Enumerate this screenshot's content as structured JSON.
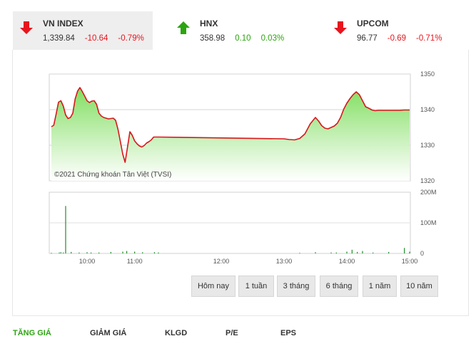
{
  "indices": [
    {
      "name": "VN INDEX",
      "value": "1,339.84",
      "change": "-10.64",
      "percent": "-0.79%",
      "direction": "down",
      "active": true
    },
    {
      "name": "HNX",
      "value": "358.98",
      "change": "0.10",
      "percent": "0.03%",
      "direction": "up",
      "active": false
    },
    {
      "name": "UPCOM",
      "value": "96.77",
      "change": "-0.69",
      "percent": "-0.71%",
      "direction": "down",
      "active": false
    }
  ],
  "colors": {
    "up": "#2ba50f",
    "down": "#e8141d",
    "line": "#d9161c",
    "fill_top": "#7fde5e",
    "volume": "#1f8c2a"
  },
  "chart_data": {
    "type": "line",
    "copyright": "©2021 Chứng khoán Tân Việt (TVSI)",
    "price_ticks": [
      "1350",
      "1340",
      "1330",
      "1320"
    ],
    "volume_ticks": [
      "200M",
      "100M",
      "0"
    ],
    "x_ticks": [
      "10:00",
      "11:00",
      "12:00",
      "13:00",
      "14:00",
      "15:00"
    ],
    "ylim": [
      1320,
      1350
    ],
    "volume_ylim": [
      0,
      200
    ],
    "grid": true,
    "series": [
      {
        "x": [
          "9:15",
          "9:18",
          "9:21",
          "9:24",
          "9:27",
          "9:30",
          "9:33",
          "9:36",
          "9:39",
          "9:42",
          "9:45",
          "9:48",
          "9:51",
          "9:54",
          "9:57",
          "10:00",
          "10:03",
          "10:06",
          "10:09",
          "10:12",
          "10:15",
          "10:18",
          "10:21",
          "10:24",
          "10:27",
          "10:30",
          "10:33",
          "10:36",
          "10:39",
          "10:42",
          "10:45",
          "10:48",
          "10:51",
          "10:54",
          "10:57",
          "11:00",
          "11:03",
          "11:06",
          "11:09",
          "11:12",
          "11:15",
          "11:18",
          "11:21",
          "11:24",
          "11:27",
          "11:30",
          "13:00",
          "13:05",
          "13:10",
          "13:15",
          "13:20",
          "13:25",
          "13:30",
          "13:33",
          "13:36",
          "13:39",
          "13:42",
          "13:45",
          "13:48",
          "13:51",
          "13:54",
          "13:57",
          "14:00",
          "14:03",
          "14:06",
          "14:09",
          "14:12",
          "14:15",
          "14:18",
          "14:21",
          "14:24",
          "14:27",
          "14:30",
          "14:35",
          "14:40",
          "14:45",
          "14:50",
          "14:55",
          "15:00"
        ],
        "values": [
          1335.2,
          1335.6,
          1338.8,
          1342.1,
          1342.5,
          1341.0,
          1338.5,
          1337.5,
          1337.8,
          1339.0,
          1343.0,
          1345.2,
          1346.2,
          1345.1,
          1343.8,
          1342.5,
          1342.0,
          1342.4,
          1342.5,
          1341.5,
          1339.0,
          1338.2,
          1337.8,
          1337.6,
          1337.4,
          1337.5,
          1337.6,
          1337.0,
          1334.5,
          1331.0,
          1327.5,
          1325.2,
          1329.5,
          1333.8,
          1332.8,
          1331.2,
          1330.4,
          1329.8,
          1329.5,
          1329.9,
          1330.6,
          1331.0,
          1331.5,
          1332.3,
          1332.3,
          1332.3,
          1331.8,
          1331.6,
          1331.5,
          1331.9,
          1333.2,
          1336.0,
          1337.8,
          1336.8,
          1335.5,
          1334.8,
          1334.6,
          1335.0,
          1335.4,
          1336.2,
          1337.8,
          1340.1,
          1341.8,
          1343.1,
          1344.2,
          1345.0,
          1344.2,
          1342.5,
          1340.8,
          1340.4,
          1339.9,
          1339.7,
          1339.8,
          1339.8,
          1339.8,
          1339.8,
          1339.8,
          1339.9,
          1339.9
        ]
      },
      {
        "name": "volume",
        "x": [
          "9:15",
          "9:25",
          "9:27",
          "9:30",
          "9:33",
          "9:40",
          "9:50",
          "10:00",
          "10:05",
          "10:15",
          "10:30",
          "10:45",
          "10:50",
          "11:00",
          "11:10",
          "11:25",
          "11:30",
          "13:15",
          "13:30",
          "13:45",
          "13:50",
          "14:00",
          "14:05",
          "14:10",
          "14:15",
          "14:25",
          "14:40",
          "14:55",
          "15:00"
        ],
        "values": [
          2,
          3,
          4,
          3,
          155,
          5,
          3,
          4,
          3,
          3,
          5,
          6,
          8,
          6,
          4,
          4,
          3,
          2,
          4,
          3,
          3,
          6,
          12,
          5,
          8,
          3,
          5,
          18,
          6
        ]
      }
    ]
  },
  "buttons": [
    {
      "label": "Hôm nay"
    },
    {
      "label": "1 tuần"
    },
    {
      "label": "3 tháng"
    },
    {
      "label": "6 tháng"
    },
    {
      "label": "1 năm"
    },
    {
      "label": "10 năm"
    }
  ],
  "tabs": [
    {
      "label": "TĂNG GIÁ",
      "active": true
    },
    {
      "label": "GIẢM GIÁ",
      "active": false
    },
    {
      "label": "KLGD",
      "active": false
    },
    {
      "label": "P/E",
      "active": false
    },
    {
      "label": "EPS",
      "active": false
    }
  ]
}
